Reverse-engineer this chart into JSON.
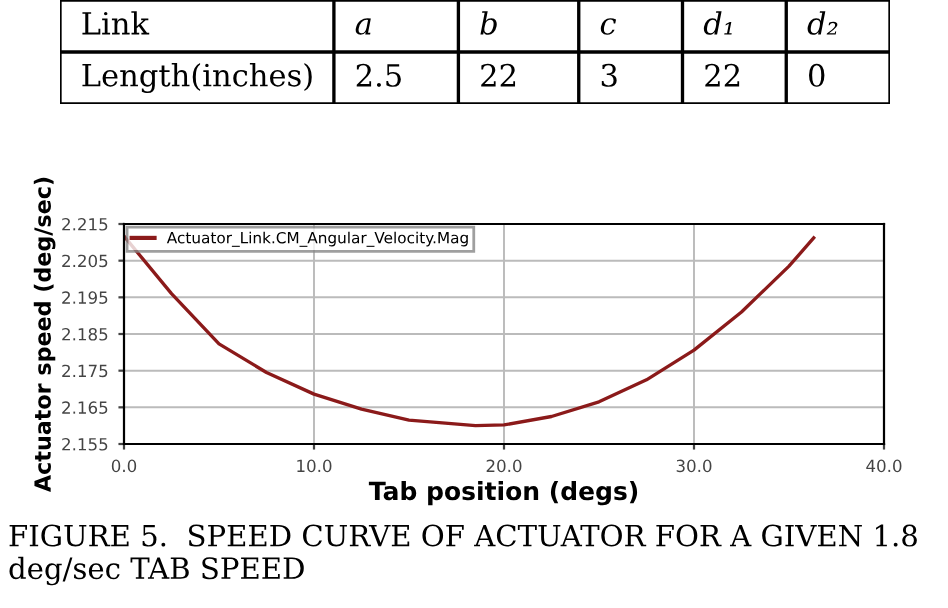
{
  "chart_data": [
    {
      "type": "other",
      "annotations": [
        "Link",
        "a",
        "b",
        "c",
        "d₁",
        "d₂",
        "Length(inches)",
        "2.5",
        "22",
        "3",
        "22",
        "0"
      ]
    },
    {
      "type": "line",
      "xlabel": "Tab position (degs)",
      "ylabel": "Actuator speed (deg/sec)",
      "x": [
        0,
        2.5,
        5,
        7.5,
        10,
        12.5,
        15,
        18.5,
        20,
        22.5,
        25,
        27.5,
        30,
        32.5,
        35,
        36.3
      ],
      "series": [
        {
          "name": "Actuator_Link.CM_Angular_Velocity.Mag",
          "color": "#8b1a1a",
          "values": [
            2.2117,
            2.196,
            2.1823,
            2.1745,
            2.1686,
            2.1645,
            2.1615,
            2.16,
            2.1602,
            2.1625,
            2.1665,
            2.1725,
            2.1806,
            2.191,
            2.2035,
            2.2112
          ]
        }
      ],
      "xlim": [
        0,
        40
      ],
      "xticks": [
        {
          "value": 0,
          "label": "0.0"
        },
        {
          "value": 10,
          "label": "10.0"
        },
        {
          "value": 20,
          "label": "20.0"
        },
        {
          "value": 30,
          "label": "30.0"
        },
        {
          "value": 40,
          "label": "40.0"
        }
      ],
      "ylim": [
        2.155,
        2.215
      ],
      "yticks": [
        2.155,
        2.165,
        2.175,
        2.185,
        2.195,
        2.205,
        2.215
      ],
      "grid": true,
      "legend": "top left",
      "line_style": "solid",
      "marker": "none",
      "annotations": [
        "FIGURE 5.  SPEED CURVE OF ACTUATOR FOR A GIVEN 1.8 deg/sec TAB SPEED"
      ]
    }
  ]
}
